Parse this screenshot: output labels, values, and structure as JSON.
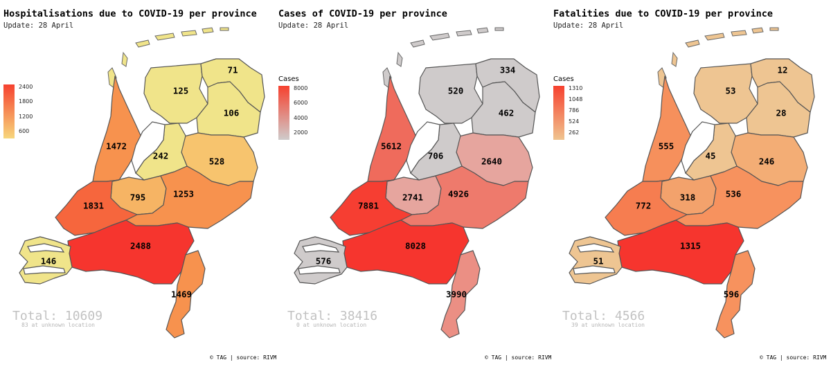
{
  "panels": [
    {
      "title": "Hospitalisations due to COVID-19 per province",
      "update": "Update: 28 April",
      "legend": {
        "title": "",
        "ticks": [
          "2400",
          "1800",
          "1200",
          "600"
        ],
        "gradient": [
          "#f6412f",
          "#f7d77c"
        ]
      },
      "values": {
        "groningen": "71",
        "friesland": "125",
        "drenthe": "106",
        "noord_holland": "1472",
        "flevoland": "242",
        "overijssel": "528",
        "utrecht": "795",
        "gelderland": "1253",
        "zuid_holland": "1831",
        "zeeland": "146",
        "noord_brabant": "2488",
        "limburg": "1469"
      },
      "colors": {
        "groningen": "#f0e48a",
        "friesland": "#f0e48a",
        "drenthe": "#f0e48a",
        "noord_holland": "#f7924e",
        "flevoland": "#f0e48a",
        "overijssel": "#f7c46e",
        "utrecht": "#f6b464",
        "gelderland": "#f7924e",
        "zuid_holland": "#f6663d",
        "zeeland": "#f0e48a",
        "noord_brabant": "#f6352e",
        "limburg": "#f7924e"
      },
      "total": "Total: 10609",
      "unknown": "83 at unknown location",
      "source": "© TAG | source: RIVM"
    },
    {
      "title": "Cases of COVID-19 per province",
      "update": "Update: 28 April",
      "legend": {
        "title": "Cases",
        "ticks": [
          "8000",
          "6000",
          "4000",
          "2000"
        ],
        "gradient": [
          "#f6412f",
          "#cfcbcb"
        ]
      },
      "values": {
        "groningen": "334",
        "friesland": "520",
        "drenthe": "462",
        "noord_holland": "5612",
        "flevoland": "706",
        "overijssel": "2640",
        "utrecht": "2741",
        "gelderland": "4926",
        "zuid_holland": "7881",
        "zeeland": "576",
        "noord_brabant": "8028",
        "limburg": "3990"
      },
      "colors": {
        "groningen": "#cfcbcb",
        "friesland": "#cfcbcb",
        "drenthe": "#cfcbcb",
        "noord_holland": "#ef6b5c",
        "flevoland": "#cfcbcb",
        "overijssel": "#e6a59e",
        "utrecht": "#e6a59e",
        "gelderland": "#ee7a6c",
        "zuid_holland": "#f63e32",
        "zeeland": "#cfcbcb",
        "noord_brabant": "#f6352e",
        "limburg": "#eb8f84"
      },
      "total": "Total: 38416",
      "unknown": "0 at unknown location",
      "source": "© TAG | source: RIVM"
    },
    {
      "title": "Fatalities due to COVID-19 per province",
      "update": "Update: 28 April",
      "legend": {
        "title": "Cases",
        "ticks": [
          "1310",
          "1048",
          "786",
          "524",
          "262"
        ],
        "gradient": [
          "#f6412f",
          "#f0c48f"
        ]
      },
      "values": {
        "groningen": "12",
        "friesland": "53",
        "drenthe": "28",
        "noord_holland": "555",
        "flevoland": "45",
        "overijssel": "246",
        "utrecht": "318",
        "gelderland": "536",
        "zuid_holland": "772",
        "zeeland": "51",
        "noord_brabant": "1315",
        "limburg": "596"
      },
      "colors": {
        "groningen": "#eec592",
        "friesland": "#eec592",
        "drenthe": "#eec592",
        "noord_holland": "#f6905c",
        "flevoland": "#eec592",
        "overijssel": "#f3ad75",
        "utrecht": "#f3a26c",
        "gelderland": "#f7925e",
        "zuid_holland": "#f67d50",
        "zeeland": "#eec592",
        "noord_brabant": "#f6352e",
        "limburg": "#f7925e"
      },
      "total": "Total: 4566",
      "unknown": "39 at unknown location",
      "source": "© TAG | source: RIVM"
    }
  ]
}
